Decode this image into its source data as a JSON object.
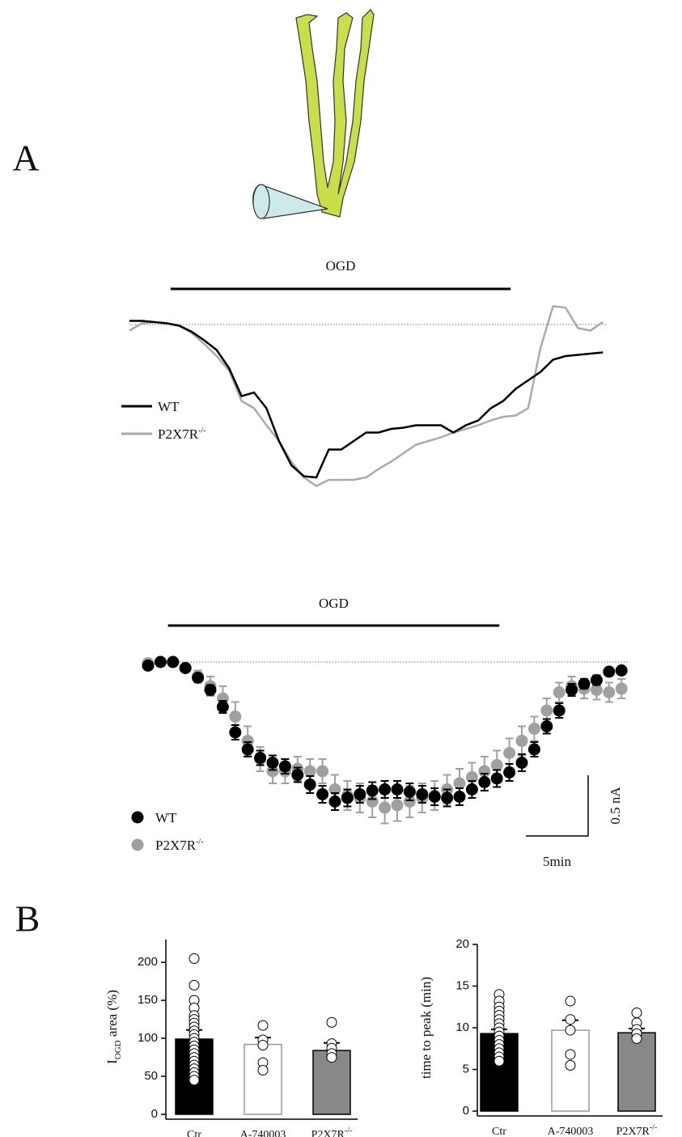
{
  "chart_data": [
    {
      "type": "line",
      "panel": "A",
      "stimulus": {
        "label": "OGD",
        "range": [
          3.3,
          30.6
        ]
      },
      "x": [
        0,
        1,
        2,
        3,
        4,
        5,
        6,
        7,
        8,
        9,
        10,
        11,
        12,
        13,
        14,
        15,
        16,
        17,
        18,
        19,
        20,
        21,
        22,
        23,
        24,
        25,
        26,
        27,
        28,
        29,
        30,
        31,
        32,
        33,
        34,
        35,
        36,
        37,
        38
      ],
      "series": [
        {
          "name": "WT",
          "color": "#000000",
          "values": [
            0.03,
            0.03,
            0.02,
            0.01,
            -0.01,
            -0.06,
            -0.13,
            -0.21,
            -0.36,
            -0.59,
            -0.56,
            -0.69,
            -0.96,
            -1.16,
            -1.25,
            -1.26,
            -1.03,
            -1.03,
            -0.96,
            -0.89,
            -0.89,
            -0.86,
            -0.85,
            -0.83,
            -0.83,
            -0.83,
            -0.89,
            -0.83,
            -0.79,
            -0.69,
            -0.63,
            -0.53,
            -0.46,
            -0.39,
            -0.29,
            -0.26,
            -0.25,
            -0.24,
            -0.23
          ]
        },
        {
          "name": "P2X7R",
          "name_superscript": "-/-",
          "color": "#aaaaaa",
          "values": [
            -0.05,
            0.01,
            0.02,
            0.01,
            -0.01,
            -0.07,
            -0.16,
            -0.26,
            -0.38,
            -0.63,
            -0.69,
            -0.83,
            -0.96,
            -1.13,
            -1.26,
            -1.33,
            -1.28,
            -1.28,
            -1.28,
            -1.26,
            -1.19,
            -1.13,
            -1.06,
            -0.99,
            -0.96,
            -0.93,
            -0.89,
            -0.86,
            -0.83,
            -0.79,
            -0.76,
            -0.75,
            -0.69,
            -0.19,
            0.15,
            0.14,
            -0.03,
            -0.05,
            0.02
          ]
        }
      ]
    },
    {
      "type": "scatter",
      "stimulus": {
        "label": "OGD",
        "range": [
          1.6,
          28.2
        ]
      },
      "scale_bar": {
        "x": 5,
        "x_label": "5min",
        "y": 0.5,
        "y_label": "0.5 nA"
      },
      "x": [
        0,
        1,
        2,
        3,
        4,
        5,
        6,
        7,
        8,
        9,
        10,
        11,
        12,
        13,
        14,
        15,
        16,
        17,
        18,
        19,
        20,
        21,
        22,
        23,
        24,
        25,
        26,
        27,
        28,
        29,
        30,
        31,
        32,
        33,
        34,
        35,
        36,
        37,
        38
      ],
      "series": [
        {
          "name": "WT",
          "color": "#000000",
          "values": [
            -0.03,
            0,
            0,
            -0.05,
            -0.13,
            -0.23,
            -0.37,
            -0.58,
            -0.72,
            -0.79,
            -0.83,
            -0.86,
            -0.93,
            -1.01,
            -1.09,
            -1.15,
            -1.12,
            -1.09,
            -1.06,
            -1.05,
            -1.05,
            -1.07,
            -1.09,
            -1.11,
            -1.12,
            -1.11,
            -1.05,
            -0.99,
            -0.96,
            -0.91,
            -0.83,
            -0.72,
            -0.53,
            -0.4,
            -0.23,
            -0.18,
            -0.15,
            -0.08,
            -0.07
          ],
          "errors": [
            0.01,
            0.01,
            0.01,
            0.02,
            0.03,
            0.04,
            0.05,
            0.06,
            0.06,
            0.06,
            0.06,
            0.06,
            0.06,
            0.07,
            0.07,
            0.07,
            0.07,
            0.07,
            0.07,
            0.07,
            0.07,
            0.07,
            0.07,
            0.07,
            0.07,
            0.07,
            0.07,
            0.07,
            0.07,
            0.07,
            0.07,
            0.06,
            0.06,
            0.06,
            0.05,
            0.04,
            0.04,
            0.03,
            0.03
          ]
        },
        {
          "name": "P2X7R",
          "name_superscript": "-/-",
          "color": "#a0a0a0",
          "values": [
            -0.01,
            0,
            0,
            -0.05,
            -0.12,
            -0.2,
            -0.3,
            -0.45,
            -0.65,
            -0.8,
            -0.9,
            -0.9,
            -0.88,
            -0.9,
            -0.9,
            -1.05,
            -1.1,
            -1.12,
            -1.15,
            -1.2,
            -1.18,
            -1.15,
            -1.12,
            -1.1,
            -1.05,
            -1,
            -0.95,
            -0.9,
            -0.85,
            -0.75,
            -0.65,
            -0.55,
            -0.4,
            -0.25,
            -0.2,
            -0.22,
            -0.23,
            -0.25,
            -0.22
          ],
          "errors": [
            0.01,
            0.01,
            0.01,
            0.03,
            0.05,
            0.08,
            0.1,
            0.12,
            0.12,
            0.1,
            0.1,
            0.1,
            0.1,
            0.1,
            0.1,
            0.12,
            0.12,
            0.12,
            0.13,
            0.13,
            0.13,
            0.13,
            0.12,
            0.12,
            0.12,
            0.12,
            0.12,
            0.12,
            0.12,
            0.12,
            0.12,
            0.1,
            0.1,
            0.08,
            0.08,
            0.08,
            0.08,
            0.08,
            0.08
          ]
        }
      ]
    },
    {
      "type": "bar",
      "panel": "B",
      "ylabel": {
        "text": "I",
        "sub": "OGD",
        "rest": " area (%)"
      },
      "categories": [
        "Ctr",
        "A-740003",
        "P2X7R"
      ],
      "category_superscripts": [
        null,
        null,
        "-/-"
      ],
      "colors": [
        "#000000",
        "#ffffff",
        "#888888"
      ],
      "values": [
        99,
        92,
        84
      ],
      "errors": [
        12,
        9,
        10
      ],
      "points": [
        [
          205,
          170,
          150,
          140,
          130,
          125,
          120,
          115,
          110,
          105,
          100,
          95,
          90,
          85,
          80,
          75,
          70,
          65,
          60,
          55,
          50,
          45
        ],
        [
          117,
          98,
          91,
          68,
          58
        ],
        [
          121,
          93,
          87,
          80,
          75
        ]
      ],
      "ylim": [
        0,
        230
      ],
      "yticks": [
        0,
        50,
        100,
        150,
        200
      ]
    },
    {
      "type": "bar",
      "ylabel": {
        "text": "time to peak (min)"
      },
      "categories": [
        "Ctr",
        "A-740003",
        "P2X7R"
      ],
      "category_superscripts": [
        null,
        null,
        "-/-"
      ],
      "colors": [
        "#000000",
        "#ffffff",
        "#888888"
      ],
      "values": [
        9.3,
        9.7,
        9.4
      ],
      "errors": [
        0.5,
        1.2,
        0.5
      ],
      "points": [
        [
          14,
          13.2,
          12.5,
          12,
          11.5,
          11,
          10.5,
          10,
          9.5,
          9,
          8.5,
          8,
          7.5,
          7,
          6.5,
          6
        ],
        [
          13.2,
          11,
          9.7,
          6.8,
          5.5
        ],
        [
          11.8,
          10.6,
          9.8,
          9.3,
          8.7
        ]
      ],
      "ylim": [
        0,
        20
      ],
      "yticks": [
        0,
        5,
        10,
        15,
        20
      ]
    }
  ]
}
